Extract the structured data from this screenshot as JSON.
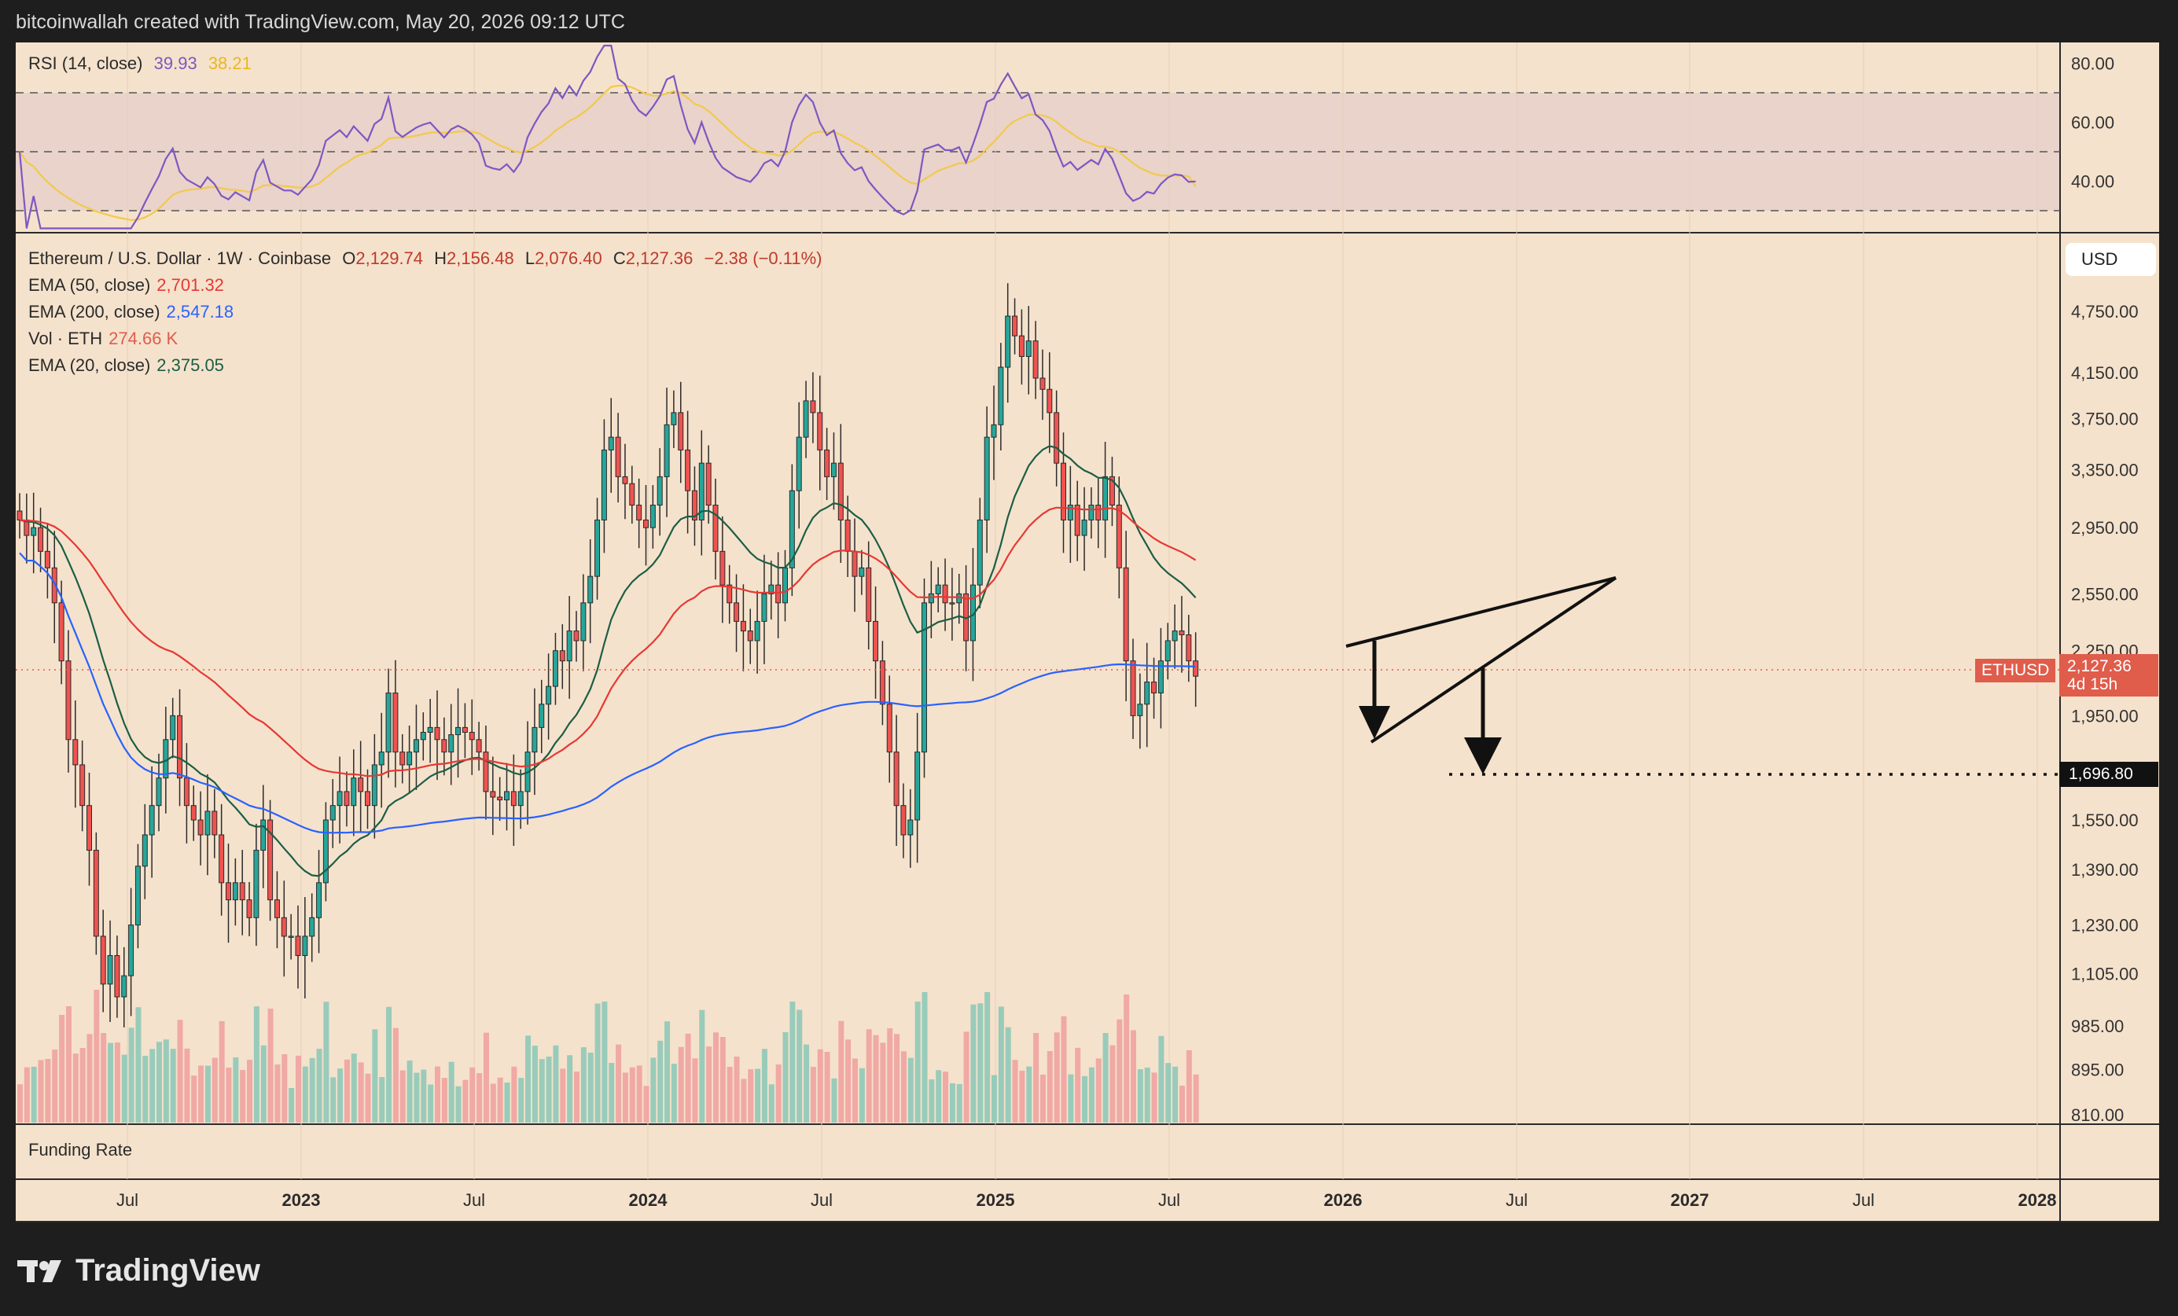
{
  "caption": "bitcoinwallah created with TradingView.com, May 20, 2026 09:12 UTC",
  "brand": "TradingView",
  "rsi": {
    "label": "RSI (14, close)",
    "value": "39.93",
    "ma_value": "38.21",
    "ticks": [
      "80.00",
      "60.00",
      "40.00"
    ],
    "color": "#7e57c2",
    "ma_color": "#f2c94c"
  },
  "main": {
    "title": "Ethereum / U.S. Dollar · 1W · Coinbase",
    "ohlc": {
      "o_label": "O",
      "o": "2,129.74",
      "h_label": "H",
      "h": "2,156.48",
      "l_label": "L",
      "l": "2,076.40",
      "c_label": "C",
      "c": "2,127.36",
      "change": "−2.38 (−0.11%)"
    },
    "indicators": [
      {
        "label": "EMA (50, close)",
        "value": "2,701.32",
        "color": "#e53935"
      },
      {
        "label": "EMA (200, close)",
        "value": "2,547.18",
        "color": "#2962ff"
      },
      {
        "label": "Vol · ETH",
        "value": "274.66 K",
        "color": "#e05c4b"
      },
      {
        "label": "EMA (20, close)",
        "value": "2,375.05",
        "color": "#1b5e45"
      }
    ],
    "currency": "USD",
    "price_ticks": [
      "4,750.00",
      "4,150.00",
      "3,750.00",
      "3,350.00",
      "2,950.00",
      "2,550.00",
      "2,250.00",
      "1,950.00",
      "1,550.00",
      "1,390.00",
      "1,230.00",
      "1,105.00",
      "985.00",
      "895.00",
      "810.00"
    ],
    "symbol_tag": "ETHUSD",
    "last_price": "2,127.36",
    "countdown": "4d 15h",
    "target_price": "1,696.80",
    "up_color": "#26a69a",
    "down_color": "#ef5350"
  },
  "funding_label": "Funding Rate",
  "time_ticks": [
    "Jul",
    "2023",
    "Jul",
    "2024",
    "Jul",
    "2025",
    "Jul",
    "2026",
    "Jul",
    "2027",
    "Jul",
    "2028"
  ],
  "chart_data": {
    "type": "candlestick",
    "symbol": "ETHUSD",
    "interval": "1W",
    "y_scale": "log",
    "ylim": [
      810,
      4900
    ],
    "x_range": [
      "2022-04",
      "2028-01"
    ],
    "closes": [
      3000,
      2900,
      2950,
      2800,
      2700,
      2500,
      2200,
      1850,
      1750,
      1600,
      1450,
      1200,
      1080,
      1150,
      1050,
      1100,
      1230,
      1400,
      1500,
      1600,
      1700,
      1850,
      1950,
      1700,
      1600,
      1550,
      1500,
      1580,
      1500,
      1350,
      1300,
      1350,
      1300,
      1250,
      1450,
      1550,
      1300,
      1250,
      1200,
      1200,
      1150,
      1200,
      1250,
      1350,
      1550,
      1600,
      1650,
      1600,
      1700,
      1650,
      1600,
      1750,
      1800,
      2050,
      1800,
      1750,
      1800,
      1850,
      1880,
      1900,
      1850,
      1800,
      1870,
      1900,
      1880,
      1850,
      1800,
      1650,
      1630,
      1620,
      1650,
      1600,
      1650,
      1800,
      1900,
      2000,
      2080,
      2250,
      2200,
      2350,
      2300,
      2500,
      2650,
      3000,
      3500,
      3600,
      3300,
      3250,
      3100,
      3000,
      2950,
      3100,
      3300,
      3700,
      3800,
      3500,
      3200,
      3000,
      3400,
      3100,
      2800,
      2600,
      2500,
      2400,
      2350,
      2300,
      2400,
      2550,
      2600,
      2500,
      2700,
      3200,
      3600,
      3900,
      3800,
      3500,
      3300,
      3400,
      3000,
      2800,
      2650,
      2700,
      2400,
      2200,
      2000,
      1800,
      1600,
      1500,
      1550,
      1800,
      2500,
      2550,
      2600,
      2500,
      2500,
      2550,
      2300,
      2600,
      3000,
      3600,
      3700,
      4200,
      4700,
      4500,
      4300,
      4450,
      4100,
      4000,
      3800,
      3400,
      3000,
      3100,
      2900,
      3000,
      3100,
      3000,
      3300,
      3100,
      2700,
      2200,
      1950,
      2000,
      2100,
      2050,
      2200,
      2300,
      2350,
      2330,
      2200,
      2127
    ],
    "ema20_label": "EMA (20, close)",
    "ema50_label": "EMA (50, close)",
    "ema200_label": "EMA (200, close)",
    "ema20_last": 2375.05,
    "ema50_last": 2701.32,
    "ema200_last": 2547.18,
    "rsi_last": 39.93,
    "rsi_ma_last": 38.21,
    "rsi_levels": [
      70,
      50,
      30
    ],
    "annotation_target": 1696.8,
    "pattern": "rising wedge"
  }
}
